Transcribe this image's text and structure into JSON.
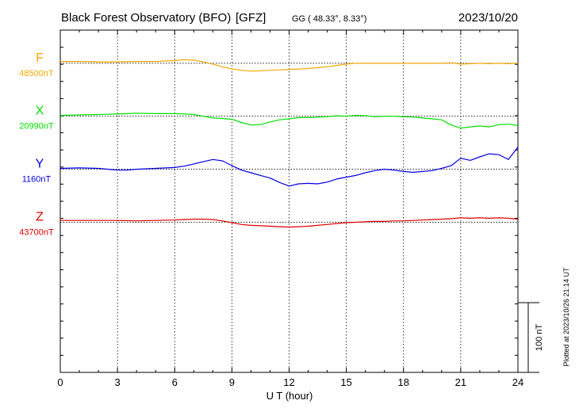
{
  "header": {
    "title": "Black Forest Observatory (BFO)",
    "institute": "[GFZ]",
    "coords": "GG ( 48.33°,   8.33°)",
    "date": "2023/10/20"
  },
  "footer": {
    "plotted": "Plotted at 2023/10/26 21:14 UT"
  },
  "chart_data": {
    "type": "line",
    "xlabel": "U T (hour)",
    "xlim": [
      0,
      24
    ],
    "xticks": [
      "0",
      "3",
      "6",
      "9",
      "12",
      "15",
      "18",
      "21",
      "24"
    ],
    "ylim_nT": [
      -250,
      525
    ],
    "grid": true,
    "scale_bar": {
      "label": "100 nT",
      "value_nT": 100
    },
    "series": [
      {
        "name": "F",
        "baseline": "48500nT",
        "color": "#f5a800",
        "offset_nT": 450,
        "x": [
          0,
          1,
          2,
          3,
          4,
          5,
          5.5,
          6,
          6.5,
          7,
          7.5,
          8,
          8.5,
          9,
          9.5,
          10,
          10.5,
          11,
          11.5,
          12,
          12.5,
          13,
          13.5,
          14,
          14.5,
          15,
          15.5,
          16,
          16.5,
          17,
          17.5,
          18,
          18.5,
          19,
          19.5,
          20,
          20.5,
          21,
          21.5,
          22,
          22.5,
          23,
          23.5,
          24
        ],
        "values": [
          4,
          4,
          3,
          3,
          4,
          4,
          5,
          6,
          8,
          7,
          3,
          -2,
          -8,
          -13,
          -16,
          -18,
          -17,
          -16,
          -15,
          -14,
          -13,
          -12,
          -10,
          -8,
          -5,
          -2,
          0,
          0,
          0,
          0,
          0,
          0,
          0,
          0,
          0,
          0,
          1,
          -2,
          -1,
          0,
          -1,
          0,
          -1,
          0
        ]
      },
      {
        "name": "X",
        "baseline": "20990nT",
        "color": "#00e000",
        "offset_nT": 330,
        "x": [
          0,
          1,
          2,
          3,
          3.5,
          4,
          5,
          6,
          6.5,
          7,
          7.5,
          8,
          8.5,
          9,
          9.5,
          10,
          10.5,
          11,
          11.5,
          12,
          12.5,
          13,
          13.5,
          14,
          14.5,
          15,
          15.5,
          16,
          16.5,
          17,
          17.5,
          18,
          18.5,
          19,
          19.5,
          20,
          20.5,
          21,
          21.5,
          22,
          22.5,
          23,
          23.5,
          24
        ],
        "values": [
          2,
          3,
          4,
          5,
          6,
          7,
          6,
          6,
          5,
          4,
          0,
          -4,
          -5,
          -7,
          -14,
          -20,
          -19,
          -13,
          -8,
          -6,
          -3,
          -3,
          -2,
          -1,
          1,
          0,
          2,
          1,
          -1,
          0,
          0,
          -1,
          -2,
          -4,
          -6,
          -8,
          -20,
          -27,
          -24,
          -22,
          -24,
          -19,
          -18,
          -21
        ]
      },
      {
        "name": "Y",
        "baseline": "1160nT",
        "color": "#0000e0",
        "offset_nT": 210,
        "x": [
          0,
          1,
          2,
          2.5,
          3,
          3.5,
          4,
          5,
          6,
          6.5,
          7,
          7.5,
          8,
          8.5,
          9,
          9.5,
          10,
          10.5,
          11,
          11.5,
          12,
          12.5,
          13,
          13.5,
          14,
          14.5,
          15,
          15.5,
          16,
          16.5,
          17,
          17.5,
          18,
          18.5,
          19,
          19.5,
          20,
          20.5,
          21,
          21.5,
          22,
          22.5,
          23,
          23.5,
          24
        ],
        "values": [
          2,
          3,
          2,
          0,
          -2,
          -2,
          0,
          2,
          4,
          7,
          12,
          17,
          22,
          19,
          8,
          -2,
          -8,
          -14,
          -20,
          -30,
          -38,
          -33,
          -32,
          -33,
          -29,
          -22,
          -18,
          -14,
          -8,
          -3,
          0,
          -2,
          -5,
          -7,
          -5,
          -3,
          2,
          8,
          25,
          20,
          28,
          35,
          33,
          22,
          50
        ]
      },
      {
        "name": "Z",
        "baseline": "43700nT",
        "color": "#e00000",
        "offset_nT": 90,
        "x": [
          0,
          1,
          2,
          3,
          4,
          5,
          6,
          6.5,
          7,
          7.5,
          8,
          8.5,
          9,
          9.5,
          10,
          10.5,
          11,
          11.5,
          12,
          12.5,
          13,
          13.5,
          14,
          14.5,
          15,
          15.5,
          16,
          16.5,
          17,
          17.5,
          18,
          18.5,
          19,
          19.5,
          20,
          20.5,
          21,
          21.5,
          22,
          22.5,
          23,
          23.5,
          24
        ],
        "values": [
          4,
          4,
          4,
          4,
          3,
          4,
          5,
          6,
          7,
          7,
          6,
          3,
          -1,
          -5,
          -7,
          -8,
          -9,
          -10,
          -11,
          -10,
          -9,
          -7,
          -5,
          -3,
          -1,
          0,
          1,
          2,
          2,
          3,
          3,
          4,
          5,
          6,
          7,
          8,
          10,
          9,
          10,
          9,
          10,
          9,
          7
        ]
      }
    ]
  }
}
